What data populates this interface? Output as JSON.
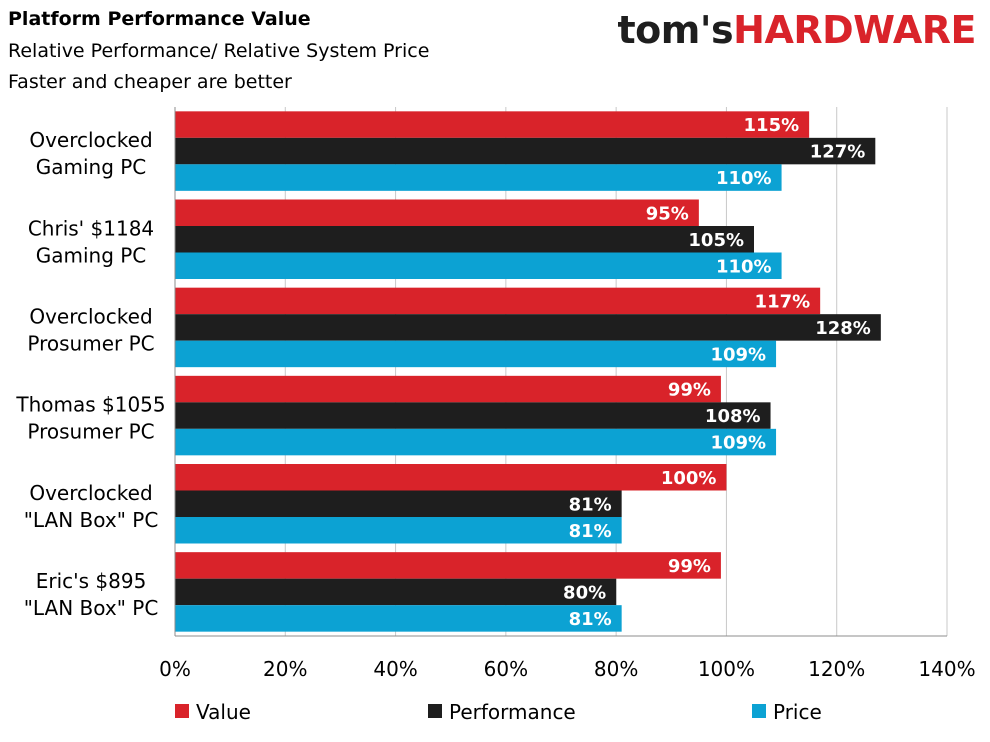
{
  "brand": {
    "part1": "tom's",
    "part2": "HARDWARE"
  },
  "chart_data": {
    "type": "bar",
    "orientation": "horizontal",
    "title": "Platform Performance Value",
    "subtitle_lines": [
      "Relative Performance/ Relative System Price",
      "Faster and cheaper are better"
    ],
    "categories": [
      [
        "Overclocked",
        "Gaming PC"
      ],
      [
        "Chris' $1184",
        "Gaming PC"
      ],
      [
        "Overclocked",
        "Prosumer PC"
      ],
      [
        "Thomas $1055",
        "Prosumer PC"
      ],
      [
        "Overclocked",
        "\"LAN Box\" PC"
      ],
      [
        "Eric's $895",
        "\"LAN Box\" PC"
      ]
    ],
    "series": [
      {
        "name": "Value",
        "color": "#d9232a",
        "values": [
          115,
          95,
          117,
          99,
          100,
          99
        ],
        "labels": [
          "115%",
          "95%",
          "117%",
          "99%",
          "100%",
          "99%"
        ]
      },
      {
        "name": "Performance",
        "color": "#1e1e1e",
        "values": [
          127,
          105,
          128,
          108,
          81,
          80
        ],
        "labels": [
          "127%",
          "105%",
          "128%",
          "108%",
          "81%",
          "80%"
        ]
      },
      {
        "name": "Price",
        "color": "#0ca2d3",
        "values": [
          110,
          110,
          109,
          109,
          81,
          81
        ],
        "labels": [
          "110%",
          "110%",
          "109%",
          "109%",
          "81%",
          "81%"
        ]
      }
    ],
    "xlim": [
      0,
      140
    ],
    "xticks": [
      0,
      20,
      40,
      60,
      80,
      100,
      120,
      140
    ],
    "xtick_labels": [
      "0%",
      "20%",
      "40%",
      "60%",
      "80%",
      "100%",
      "120%",
      "140%"
    ],
    "grid": "vertical",
    "gridline_color": "#c8c8c8",
    "legend_position": "bottom"
  }
}
